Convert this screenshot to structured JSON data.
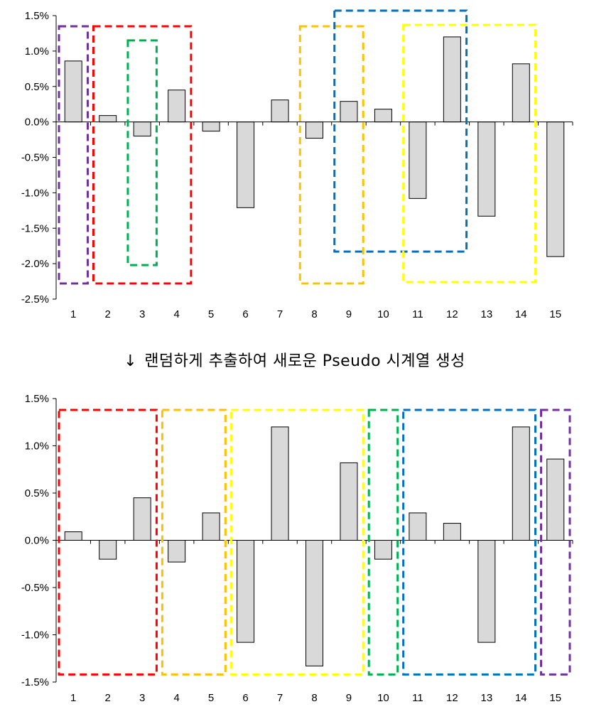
{
  "caption": {
    "arrow": "↓",
    "text": "랜덤하게 추출하여 새로운 Pseudo 시계열 생성"
  },
  "chart_data": [
    {
      "type": "bar",
      "categories": [
        "1",
        "2",
        "3",
        "4",
        "5",
        "6",
        "7",
        "8",
        "9",
        "10",
        "11",
        "12",
        "13",
        "14",
        "15"
      ],
      "values": [
        0.86,
        0.09,
        -0.2,
        0.45,
        -0.13,
        -1.21,
        0.31,
        -0.23,
        0.29,
        0.18,
        -1.08,
        1.2,
        -1.33,
        0.82,
        -1.9
      ],
      "ylim": [
        -2.5,
        1.5
      ],
      "yticks": [
        1.5,
        1.0,
        0.5,
        0.0,
        -0.5,
        -1.0,
        -1.5,
        -2.0,
        -2.5
      ],
      "ytick_labels": [
        "1.5%",
        "1.0%",
        "0.5%",
        "0.0%",
        "-0.5%",
        "-1.0%",
        "-1.5%",
        "-2.0%",
        "-2.5%"
      ],
      "bar_color": "#d9d9d9",
      "grid": false,
      "highlight_boxes": [
        {
          "color": "#7030a0",
          "from": 1,
          "to": 1,
          "ymin": -2.28,
          "ymax": 1.35
        },
        {
          "color": "#ff0000",
          "from": 2,
          "to": 4,
          "ymin": -2.28,
          "ymax": 1.35
        },
        {
          "color": "#00b050",
          "from": 3,
          "to": 3,
          "ymin": -2.02,
          "ymax": 1.15
        },
        {
          "color": "#ffc000",
          "from": 8,
          "to": 9,
          "ymin": -2.28,
          "ymax": 1.35
        },
        {
          "color": "#0070c0",
          "from": 9,
          "to": 12,
          "ymin": -1.83,
          "ymax": 1.57
        },
        {
          "color": "#ffff00",
          "from": 11,
          "to": 14,
          "ymin": -2.26,
          "ymax": 1.37
        }
      ]
    },
    {
      "type": "bar",
      "categories": [
        "1",
        "2",
        "3",
        "4",
        "5",
        "6",
        "7",
        "8",
        "9",
        "10",
        "11",
        "12",
        "13",
        "14",
        "15"
      ],
      "values": [
        0.09,
        -0.2,
        0.45,
        -0.23,
        0.29,
        -1.08,
        1.2,
        -1.33,
        0.82,
        -0.2,
        0.29,
        0.18,
        -1.08,
        1.2,
        0.86
      ],
      "ylim": [
        -1.5,
        1.5
      ],
      "yticks": [
        1.5,
        1.0,
        0.5,
        0.0,
        -0.5,
        -1.0,
        -1.5
      ],
      "ytick_labels": [
        "1.5%",
        "1.0%",
        "0.5%",
        "0.0%",
        "-0.5%",
        "-1.0%",
        "-1.5%"
      ],
      "bar_color": "#d9d9d9",
      "grid": false,
      "highlight_boxes": [
        {
          "color": "#ff0000",
          "from": 1,
          "to": 3,
          "ymin": -1.42,
          "ymax": 1.38
        },
        {
          "color": "#ffc000",
          "from": 4,
          "to": 5,
          "ymin": -1.42,
          "ymax": 1.38
        },
        {
          "color": "#ffff00",
          "from": 6,
          "to": 9,
          "ymin": -1.42,
          "ymax": 1.38
        },
        {
          "color": "#00b050",
          "from": 10,
          "to": 10,
          "ymin": -1.42,
          "ymax": 1.38
        },
        {
          "color": "#0070c0",
          "from": 11,
          "to": 14,
          "ymin": -1.42,
          "ymax": 1.38
        },
        {
          "color": "#7030a0",
          "from": 15,
          "to": 15,
          "ymin": -1.42,
          "ymax": 1.38
        }
      ]
    }
  ]
}
